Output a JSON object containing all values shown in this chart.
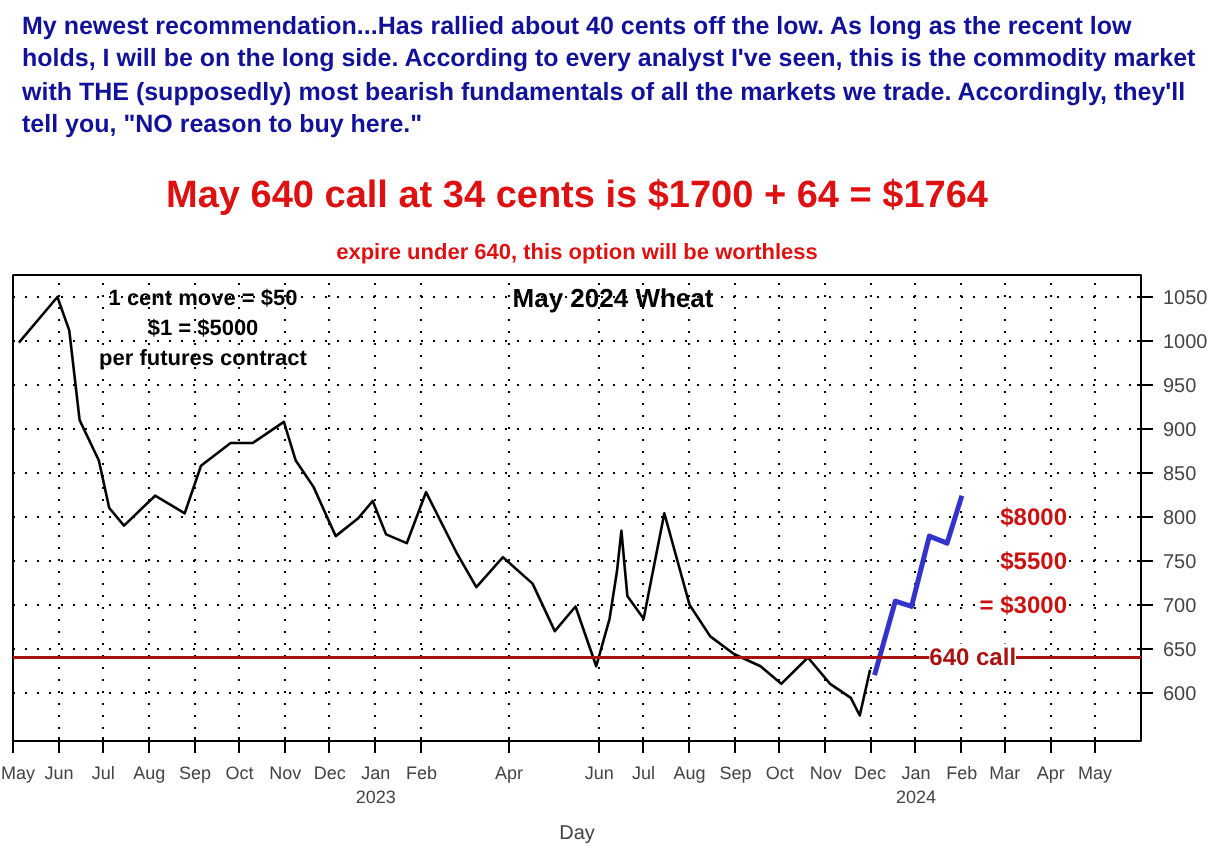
{
  "chart_data": {
    "type": "line",
    "title": "May 640 call at 34 cents is $1700 + 64 = $1764",
    "subtitle": "expire under 640, this option will be worthless",
    "xlabel": "Day",
    "annotations": [
      "My newest recommendation...Has rallied about 40 cents off the low. As long as the recent low holds, I will be on the long side. According to every analyst I've seen, this is the commodity market with THE (supposedly) most bearish fundamentals of all the markets we trade. Accordingly, they'll tell you, \"NO reason to buy here.\"",
      "May 2024 Wheat",
      "1 cent move = $50",
      "$1 = $5000",
      "per futures contract",
      "$8000",
      "$5500",
      "= $3000"
    ],
    "series": [
      {
        "color": "#000000",
        "x": [
          "2022-05-05",
          "2022-05-31",
          "2022-06-08",
          "2022-06-15",
          "2022-06-28",
          "2022-07-05",
          "2022-07-15",
          "2022-08-05",
          "2022-08-25",
          "2022-09-05",
          "2022-09-25",
          "2022-10-10",
          "2022-10-31",
          "2022-11-08",
          "2022-11-20",
          "2022-12-05",
          "2022-12-20",
          "2022-12-30",
          "2023-01-08",
          "2023-01-22",
          "2023-02-04",
          "2023-02-25",
          "2023-03-10",
          "2023-03-28",
          "2023-04-17",
          "2023-05-02",
          "2023-05-16",
          "2023-05-30",
          "2023-06-08",
          "2023-06-13",
          "2023-06-16",
          "2023-06-20",
          "2023-07-01",
          "2023-07-15",
          "2023-08-01",
          "2023-08-15",
          "2023-08-31",
          "2023-09-18",
          "2023-10-02",
          "2023-10-20",
          "2023-11-04",
          "2023-11-18",
          "2023-11-24",
          "2023-12-01"
        ],
        "values": [
          998,
          1050,
          1012,
          910,
          864,
          810,
          790,
          824,
          804,
          858,
          884,
          884,
          908,
          864,
          834,
          778,
          798,
          818,
          780,
          770,
          828,
          758,
          720,
          754,
          724,
          670,
          698,
          630,
          684,
          738,
          784,
          710,
          684,
          804,
          700,
          664,
          644,
          630,
          610,
          640,
          610,
          594,
          574,
          626
        ]
      },
      {
        "color": "#3333cc",
        "x": [
          "2023-12-04",
          "2023-12-18",
          "2023-12-29",
          "2024-01-10",
          "2024-01-22",
          "2024-02-01"
        ],
        "values": [
          620,
          704,
          698,
          778,
          770,
          824
        ]
      }
    ],
    "ylim": [
      545,
      1075
    ],
    "yticks": [
      600,
      650,
      700,
      750,
      800,
      850,
      900,
      950,
      1000,
      1050
    ],
    "xlim": [
      "2022-05-01",
      "2024-06-01"
    ],
    "xticks": [
      {
        "value": "2022-05-01",
        "label": "May"
      },
      {
        "value": "2022-06-01",
        "label": "Jun"
      },
      {
        "value": "2022-07-01",
        "label": "Jul"
      },
      {
        "value": "2022-08-01",
        "label": "Aug"
      },
      {
        "value": "2022-09-01",
        "label": "Sep"
      },
      {
        "value": "2022-10-01",
        "label": "Oct"
      },
      {
        "value": "2022-11-01",
        "label": "Nov"
      },
      {
        "value": "2022-12-01",
        "label": "Dec"
      },
      {
        "value": "2023-01-01",
        "label": "Jan\n2023"
      },
      {
        "value": "2023-02-01",
        "label": "Feb"
      },
      {
        "value": "2023-04-01",
        "label": "Apr"
      },
      {
        "value": "2023-06-01",
        "label": "Jun"
      },
      {
        "value": "2023-07-01",
        "label": "Jul"
      },
      {
        "value": "2023-08-01",
        "label": "Aug"
      },
      {
        "value": "2023-09-01",
        "label": "Sep"
      },
      {
        "value": "2023-10-01",
        "label": "Oct"
      },
      {
        "value": "2023-11-01",
        "label": "Nov"
      },
      {
        "value": "2023-12-01",
        "label": "Dec"
      },
      {
        "value": "2024-01-01",
        "label": "Jan\n2024"
      },
      {
        "value": "2024-02-01",
        "label": "Feb"
      },
      {
        "value": "2024-03-01",
        "label": "Mar"
      },
      {
        "value": "2024-04-01",
        "label": "Apr"
      },
      {
        "value": "2024-05-01",
        "label": "May"
      }
    ],
    "ref_lines": [
      {
        "axis": "y",
        "value": 640,
        "label": "640 call",
        "color": "#aa1111"
      }
    ],
    "grid": true
  }
}
